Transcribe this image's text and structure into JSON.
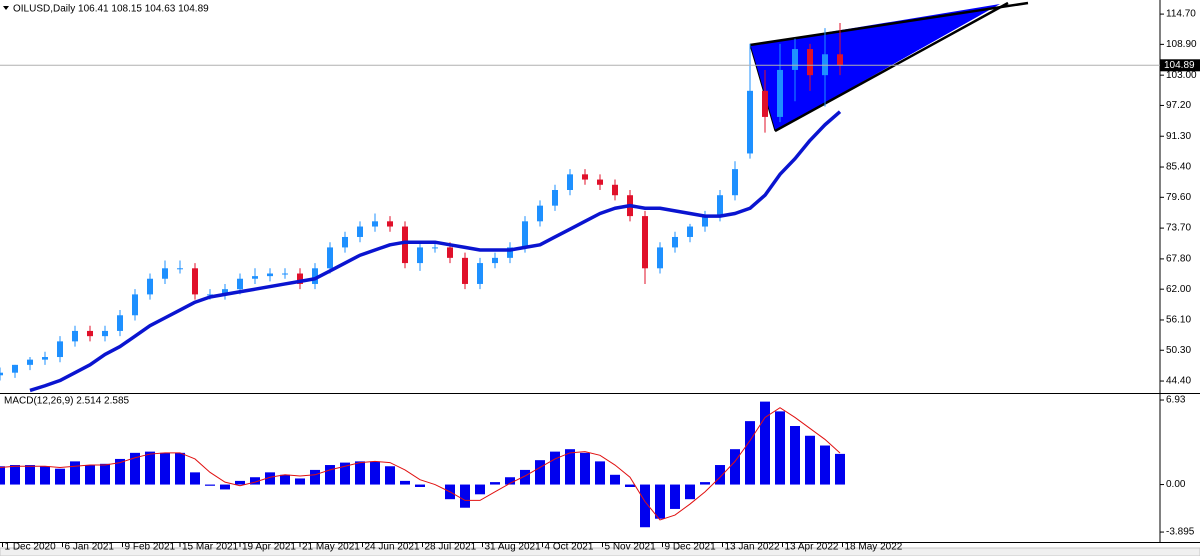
{
  "chart_data": [
    {
      "type": "candlestick",
      "header": "OILUSD,Daily 106.41 108.15 104.63 104.89",
      "up_color": "#1e90ff",
      "down_color": "#e0102a",
      "x": [
        0,
        6,
        12,
        18,
        24,
        30,
        36,
        42,
        48,
        54,
        60,
        66,
        72,
        78,
        84,
        90,
        96,
        102,
        108,
        114,
        120,
        126,
        132,
        138,
        144,
        150,
        156,
        162,
        168,
        174,
        180,
        186,
        192,
        198,
        204,
        210,
        216,
        222,
        228,
        234,
        240,
        246,
        252,
        258,
        264,
        270,
        276,
        282,
        288,
        294,
        300,
        306,
        312,
        318,
        324,
        330,
        336
      ],
      "open": [
        45.5,
        46,
        47.5,
        48.5,
        49,
        52,
        54,
        53,
        54,
        57,
        61,
        64,
        66,
        66,
        61,
        61,
        62,
        64,
        64.5,
        65,
        65,
        63,
        66,
        70,
        72,
        74,
        75,
        74,
        67,
        70,
        70,
        68,
        63,
        67,
        68,
        70,
        75,
        78,
        81,
        84,
        83,
        82,
        80,
        76,
        66,
        70,
        72,
        74,
        76,
        80,
        88,
        100,
        95,
        104,
        108,
        103,
        107
      ],
      "high": [
        47,
        47.5,
        49,
        50,
        53,
        55,
        55,
        55,
        58,
        62,
        65,
        67.5,
        67.5,
        67,
        62,
        63,
        65,
        66,
        66,
        66,
        66,
        67,
        71,
        73,
        75,
        76.5,
        76,
        75,
        71,
        71,
        71,
        69,
        68,
        69,
        71,
        76,
        79,
        82,
        85,
        85,
        84,
        83,
        81,
        77,
        71,
        73,
        74.5,
        77,
        81,
        86.5,
        109,
        104,
        109,
        110,
        109,
        112,
        113
      ],
      "low": [
        44.5,
        45,
        46.5,
        47.5,
        48,
        51,
        52,
        52,
        53,
        56,
        60,
        63,
        65,
        60,
        60,
        60,
        61,
        63,
        63.5,
        64,
        62,
        62,
        65,
        69,
        71,
        73,
        73,
        66,
        65.5,
        69,
        67,
        62,
        62,
        66,
        67,
        69,
        74,
        77,
        80,
        82,
        81,
        79,
        75,
        63,
        65,
        69,
        71,
        73,
        75,
        79,
        87,
        92,
        94,
        98,
        100,
        97,
        103
      ],
      "close": [
        46,
        47.5,
        48.5,
        49,
        52,
        54,
        53,
        54,
        57,
        61,
        64,
        66,
        66,
        61,
        61,
        62,
        64,
        64.5,
        65,
        65,
        63,
        66,
        70,
        72,
        74,
        75,
        74,
        67,
        70,
        70,
        68,
        63,
        67,
        68,
        70,
        75,
        78,
        81,
        84,
        83,
        82,
        80,
        76,
        66,
        70,
        72,
        74,
        76,
        80,
        85,
        100,
        95,
        104,
        108,
        103,
        107,
        104.89
      ],
      "moving_average": {
        "color": "#0a14d0",
        "values": [
          null,
          null,
          42.6,
          43.5,
          44.5,
          46,
          47.5,
          49.5,
          51,
          53,
          55,
          56.5,
          58,
          59.5,
          60.5,
          61,
          61.5,
          62,
          62.5,
          63,
          63.5,
          64,
          65.5,
          67,
          68.5,
          69.5,
          70.5,
          71,
          71,
          71,
          70.5,
          70,
          69.5,
          69.5,
          69.5,
          70,
          70.5,
          72,
          73.5,
          75,
          76.5,
          77.5,
          78,
          77.5,
          77.5,
          77,
          76.5,
          76,
          76,
          76.5,
          77.5,
          80,
          84,
          87,
          90.5,
          93.5,
          96
        ]
      },
      "last_price": 104.89,
      "xlim": [
        0,
        464
      ],
      "xticks": [
        {
          "value": 1,
          "label": "1 Dec 2020"
        },
        {
          "value": 25,
          "label": "6 Jan 2021"
        },
        {
          "value": 49,
          "label": "9 Feb 2021"
        },
        {
          "value": 72,
          "label": "15 Mar 2021"
        },
        {
          "value": 96,
          "label": "19 Apr 2021"
        },
        {
          "value": 120,
          "label": "21 May 2021"
        },
        {
          "value": 145,
          "label": "24 Jun 2021"
        },
        {
          "value": 169,
          "label": "28 Jul 2021"
        },
        {
          "value": 193,
          "label": "31 Aug 2021"
        },
        {
          "value": 217,
          "label": "4 Oct 2021"
        },
        {
          "value": 241,
          "label": "5 Nov 2021"
        },
        {
          "value": 265,
          "label": "9 Dec 2021"
        },
        {
          "value": 289,
          "label": "13 Jan 2022"
        },
        {
          "value": 313,
          "label": "13 Apr 2022"
        },
        {
          "value": 337,
          "label": "18 May 2022"
        }
      ],
      "ylim": [
        42.3,
        117.4
      ],
      "yticks": [
        {
          "value": 114.7,
          "label": "114.70"
        },
        {
          "value": 108.9,
          "label": "108.90"
        },
        {
          "value": 103,
          "label": "103.00"
        },
        {
          "value": 97.2,
          "label": "97.20"
        },
        {
          "value": 91.3,
          "label": "91.30"
        },
        {
          "value": 85.4,
          "label": "85.40"
        },
        {
          "value": 79.6,
          "label": "79.60"
        },
        {
          "value": 73.7,
          "label": "73.70"
        },
        {
          "value": 67.8,
          "label": "67.80"
        },
        {
          "value": 62,
          "label": "62.00"
        },
        {
          "value": 56.1,
          "label": "56.10"
        },
        {
          "value": 50.3,
          "label": "50.30"
        },
        {
          "value": 44.4,
          "label": "44.40"
        }
      ]
    },
    {
      "type": "macd",
      "title": "MACD(12,26,9) 2.514 2.585",
      "x": [
        0,
        6,
        12,
        18,
        24,
        30,
        36,
        42,
        48,
        54,
        60,
        66,
        72,
        78,
        84,
        90,
        96,
        102,
        108,
        114,
        120,
        126,
        132,
        138,
        144,
        150,
        156,
        162,
        168,
        174,
        180,
        186,
        192,
        198,
        204,
        210,
        216,
        222,
        228,
        234,
        240,
        246,
        252,
        258,
        264,
        270,
        276,
        282,
        288,
        294,
        300,
        306,
        312,
        318,
        324,
        330,
        336
      ],
      "series": [
        {
          "color": "#0000ee",
          "values": [
            1.5,
            1.6,
            1.6,
            1.5,
            1.3,
            1.9,
            1.6,
            1.7,
            2.1,
            2.6,
            2.7,
            2.6,
            2.6,
            1.0,
            -0.1,
            -0.4,
            0.3,
            0.6,
            1.0,
            0.8,
            0.5,
            1.2,
            1.6,
            1.8,
            1.9,
            1.9,
            1.5,
            0.3,
            -0.2,
            0.0,
            -1.2,
            -1.9,
            -0.8,
            0.2,
            0.6,
            1.2,
            2.0,
            2.7,
            2.9,
            2.6,
            1.9,
            0.8,
            -0.2,
            -3.5,
            -2.8,
            -2.0,
            -1.2,
            0.2,
            1.6,
            2.9,
            5.2,
            6.8,
            6.0,
            4.8,
            4.0,
            3.2,
            2.514
          ]
        },
        {
          "color": "#e01010",
          "values": [
            1.4,
            1.5,
            1.5,
            1.5,
            1.4,
            1.5,
            1.6,
            1.6,
            1.8,
            2.2,
            2.5,
            2.6,
            2.6,
            2.1,
            1.0,
            0.2,
            -0.1,
            0.2,
            0.6,
            0.8,
            0.7,
            0.8,
            1.2,
            1.5,
            1.8,
            1.9,
            1.8,
            1.2,
            0.4,
            0.0,
            -0.6,
            -1.3,
            -1.3,
            -0.6,
            0.1,
            0.7,
            1.4,
            2.1,
            2.6,
            2.7,
            2.4,
            1.6,
            0.6,
            -1.4,
            -2.9,
            -2.5,
            -1.6,
            -0.6,
            0.6,
            1.9,
            3.6,
            5.5,
            6.3,
            5.5,
            4.6,
            3.7,
            2.585
          ]
        }
      ],
      "xlim": [
        0,
        464
      ],
      "ylim": [
        -4.71,
        7.26
      ],
      "yticks": [
        6.93,
        {
          "value": 0,
          "label": "0.00"
        },
        -3.895
      ]
    }
  ]
}
